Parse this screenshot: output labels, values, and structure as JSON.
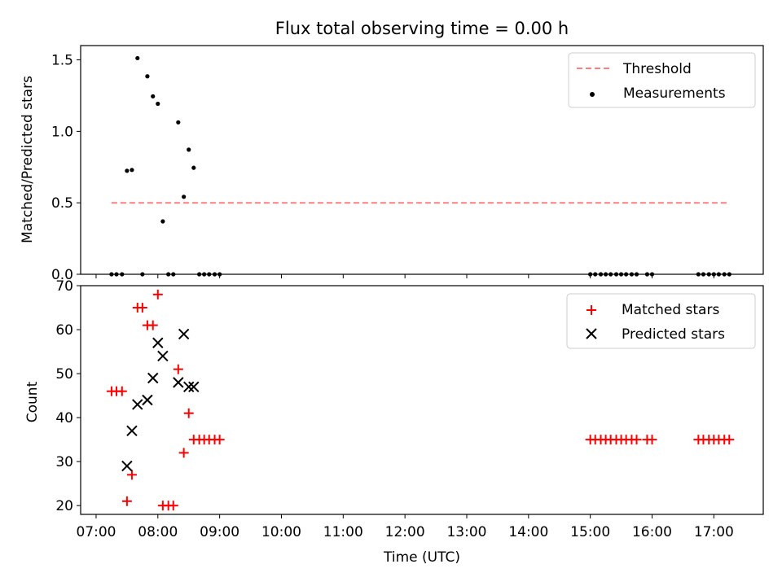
{
  "chart_data": [
    {
      "type": "scatter",
      "title": "Flux total observing time = 0.00 h",
      "xlabel": "",
      "ylabel": "Matched/Predicted stars",
      "xlim": [
        6.75,
        17.8
      ],
      "ylim": [
        0,
        1.6
      ],
      "y_ticks": [
        0.0,
        0.5,
        1.0,
        1.5
      ],
      "y_tick_labels": [
        "0.0",
        "0.5",
        "1.0",
        "1.5"
      ],
      "legend_position": "top-right",
      "threshold": {
        "name": "Threshold",
        "value": 0.5,
        "x_range": [
          7.25,
          17.25
        ],
        "color": "#ff7f7f",
        "style": "dashed"
      },
      "series": [
        {
          "name": "Measurements",
          "marker": "dot",
          "color": "#000000",
          "points": [
            [
              7.25,
              0
            ],
            [
              7.33,
              0
            ],
            [
              7.42,
              0
            ],
            [
              7.5,
              0.724
            ],
            [
              7.58,
              0.73
            ],
            [
              7.67,
              1.512
            ],
            [
              7.75,
              0
            ],
            [
              7.83,
              1.385
            ],
            [
              7.92,
              1.245
            ],
            [
              8.0,
              1.193
            ],
            [
              8.08,
              0.37
            ],
            [
              8.17,
              0
            ],
            [
              8.25,
              0
            ],
            [
              8.33,
              1.063
            ],
            [
              8.42,
              0.542
            ],
            [
              8.5,
              0.872
            ],
            [
              8.58,
              0.745
            ],
            [
              8.67,
              0
            ],
            [
              8.75,
              0
            ],
            [
              8.83,
              0
            ],
            [
              8.92,
              0
            ],
            [
              9.0,
              0
            ],
            [
              15.0,
              0
            ],
            [
              15.08,
              0
            ],
            [
              15.17,
              0
            ],
            [
              15.25,
              0
            ],
            [
              15.33,
              0
            ],
            [
              15.42,
              0
            ],
            [
              15.5,
              0
            ],
            [
              15.58,
              0
            ],
            [
              15.67,
              0
            ],
            [
              15.75,
              0
            ],
            [
              15.92,
              0
            ],
            [
              16.0,
              0
            ],
            [
              16.75,
              0
            ],
            [
              16.83,
              0
            ],
            [
              16.92,
              0
            ],
            [
              17.0,
              0
            ],
            [
              17.08,
              0
            ],
            [
              17.17,
              0
            ],
            [
              17.25,
              0
            ]
          ]
        }
      ]
    },
    {
      "type": "scatter",
      "title": "",
      "xlabel": "Time (UTC)",
      "ylabel": "Count",
      "xlim": [
        6.75,
        17.8
      ],
      "ylim": [
        18,
        70
      ],
      "x_ticks": [
        7,
        8,
        9,
        10,
        11,
        12,
        13,
        14,
        15,
        16,
        17
      ],
      "x_tick_labels": [
        "07:00",
        "08:00",
        "09:00",
        "10:00",
        "11:00",
        "12:00",
        "13:00",
        "14:00",
        "15:00",
        "16:00",
        "17:00"
      ],
      "y_ticks": [
        20,
        30,
        40,
        50,
        60,
        70
      ],
      "y_tick_labels": [
        "20",
        "30",
        "40",
        "50",
        "60",
        "70"
      ],
      "legend_position": "top-right",
      "series": [
        {
          "name": "Matched stars",
          "marker": "plus",
          "color": "#ff0000",
          "points": [
            [
              7.25,
              46
            ],
            [
              7.33,
              46
            ],
            [
              7.42,
              46
            ],
            [
              7.5,
              21
            ],
            [
              7.58,
              27
            ],
            [
              7.67,
              65
            ],
            [
              7.75,
              65
            ],
            [
              7.83,
              61
            ],
            [
              7.92,
              61
            ],
            [
              8.0,
              68
            ],
            [
              8.08,
              20
            ],
            [
              8.17,
              20
            ],
            [
              8.25,
              20
            ],
            [
              8.33,
              51
            ],
            [
              8.42,
              32
            ],
            [
              8.5,
              41
            ],
            [
              8.58,
              35
            ],
            [
              8.67,
              35
            ],
            [
              8.75,
              35
            ],
            [
              8.83,
              35
            ],
            [
              8.92,
              35
            ],
            [
              9.0,
              35
            ],
            [
              15.0,
              35
            ],
            [
              15.08,
              35
            ],
            [
              15.17,
              35
            ],
            [
              15.25,
              35
            ],
            [
              15.33,
              35
            ],
            [
              15.42,
              35
            ],
            [
              15.5,
              35
            ],
            [
              15.58,
              35
            ],
            [
              15.67,
              35
            ],
            [
              15.75,
              35
            ],
            [
              15.92,
              35
            ],
            [
              16.0,
              35
            ],
            [
              16.75,
              35
            ],
            [
              16.83,
              35
            ],
            [
              16.92,
              35
            ],
            [
              17.0,
              35
            ],
            [
              17.08,
              35
            ],
            [
              17.17,
              35
            ],
            [
              17.25,
              35
            ]
          ]
        },
        {
          "name": "Predicted stars",
          "marker": "x",
          "color": "#000000",
          "points": [
            [
              7.5,
              29
            ],
            [
              7.58,
              37
            ],
            [
              7.67,
              43
            ],
            [
              7.83,
              44
            ],
            [
              7.92,
              49
            ],
            [
              8.0,
              57
            ],
            [
              8.08,
              54
            ],
            [
              8.33,
              48
            ],
            [
              8.42,
              59
            ],
            [
              8.5,
              47
            ],
            [
              8.58,
              47
            ]
          ]
        }
      ]
    }
  ]
}
